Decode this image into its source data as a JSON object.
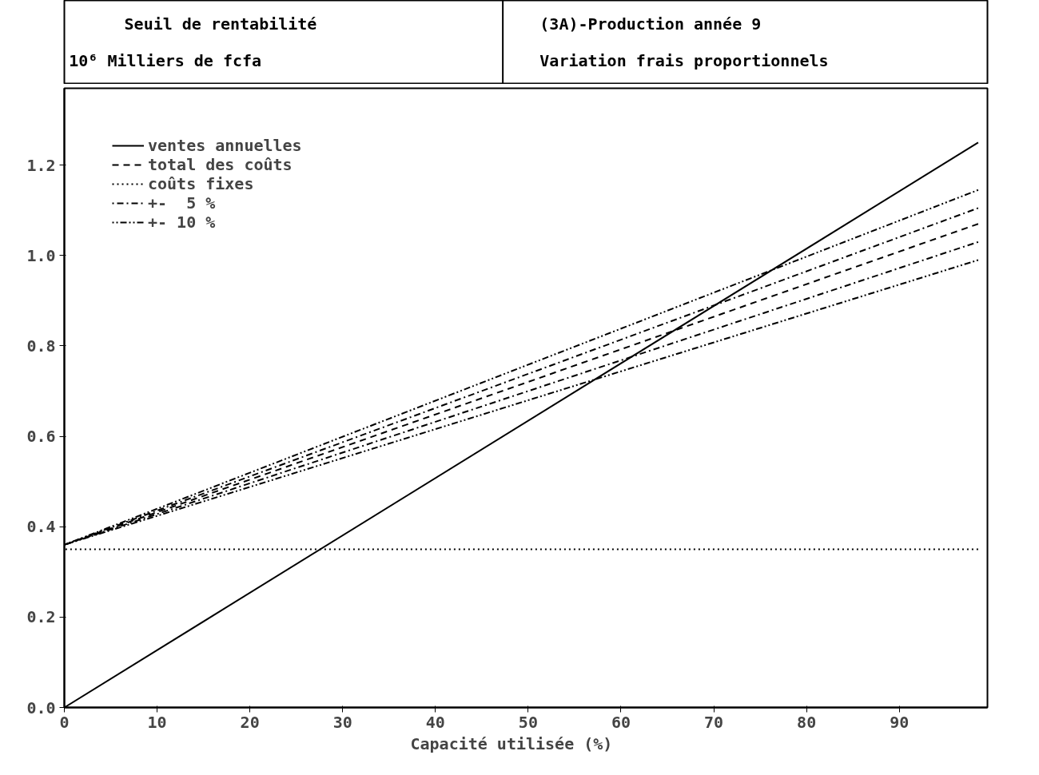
{
  "chart_data": {
    "type": "line",
    "title": "Seuil de rentabilité",
    "subtitle": "(3A)-Production année 9",
    "annotations": [
      "Variation frais proportionnels"
    ],
    "ylabel": "10⁶    Milliers de fcfa",
    "xlabel": "Capacité utilisée    (%)",
    "xlim": [
      0,
      99.5
    ],
    "ylim": [
      0,
      1.37
    ],
    "xticks": [
      0,
      10,
      20,
      30,
      40,
      50,
      60,
      70,
      80,
      90
    ],
    "yticks": [
      {
        "value": 0,
        "label": "0.0"
      },
      0.2,
      0.4,
      0.6,
      0.8,
      {
        "value": 1,
        "label": "1.0"
      },
      1.2
    ],
    "x": [
      0,
      98.5
    ],
    "series": [
      {
        "name": "ventes annuelles",
        "color": "#000000",
        "values": [
          0,
          1.25
        ],
        "line_style": "solid"
      },
      {
        "name": "total des coûts",
        "color": "#000000",
        "values": [
          0.36,
          1.07
        ],
        "line_style": "dashed"
      },
      {
        "name": "coûts fixes",
        "color": "#000000",
        "values": [
          0.35,
          0.35
        ],
        "line_style": "dotted"
      },
      {
        "name": "+-  5 %",
        "color": "#000000",
        "values": [
          0.36,
          1.105
        ],
        "line_style": "dashdot"
      },
      {
        "color": "#000000",
        "values": [
          0.36,
          1.03
        ],
        "line_style": "dashdot"
      },
      {
        "name": "+- 10 %",
        "color": "#000000",
        "values": [
          0.36,
          1.145
        ],
        "line_style": "dashdotdot"
      },
      {
        "color": "#000000",
        "values": [
          0.36,
          0.99
        ],
        "line_style": "dashdotdot"
      }
    ],
    "legend": "top left",
    "grid": false,
    "marker": "none"
  }
}
